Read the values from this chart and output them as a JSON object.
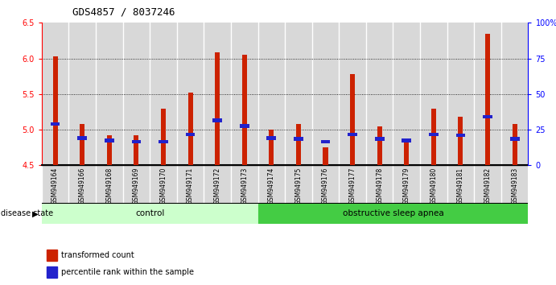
{
  "title": "GDS4857 / 8037246",
  "samples": [
    "GSM949164",
    "GSM949166",
    "GSM949168",
    "GSM949169",
    "GSM949170",
    "GSM949171",
    "GSM949172",
    "GSM949173",
    "GSM949174",
    "GSM949175",
    "GSM949176",
    "GSM949177",
    "GSM949178",
    "GSM949179",
    "GSM949180",
    "GSM949181",
    "GSM949182",
    "GSM949183"
  ],
  "red_values": [
    6.03,
    5.08,
    4.92,
    4.92,
    5.3,
    5.52,
    6.08,
    6.05,
    5.0,
    5.08,
    4.75,
    5.78,
    5.05,
    4.88,
    5.3,
    5.18,
    6.35,
    5.08
  ],
  "blue_values": [
    5.08,
    4.88,
    4.85,
    4.83,
    4.83,
    4.93,
    5.13,
    5.05,
    4.88,
    4.87,
    4.83,
    4.93,
    4.87,
    4.85,
    4.93,
    4.92,
    5.18,
    4.87
  ],
  "control_count": 8,
  "ylim": [
    4.5,
    6.5
  ],
  "yticks_left": [
    4.5,
    5.0,
    5.5,
    6.0,
    6.5
  ],
  "yticks_right": [
    0,
    25,
    50,
    75,
    100
  ],
  "bar_color_red": "#CC2200",
  "bar_color_blue": "#2222CC",
  "cell_bg": "#DDDDDD",
  "control_bg": "#CCFFCC",
  "apnea_bg": "#44CC44",
  "baseline": 4.5,
  "legend_red": "transformed count",
  "legend_blue": "percentile rank within the sample",
  "label_control": "control",
  "label_apnea": "obstructive sleep apnea",
  "disease_state_label": "disease state"
}
